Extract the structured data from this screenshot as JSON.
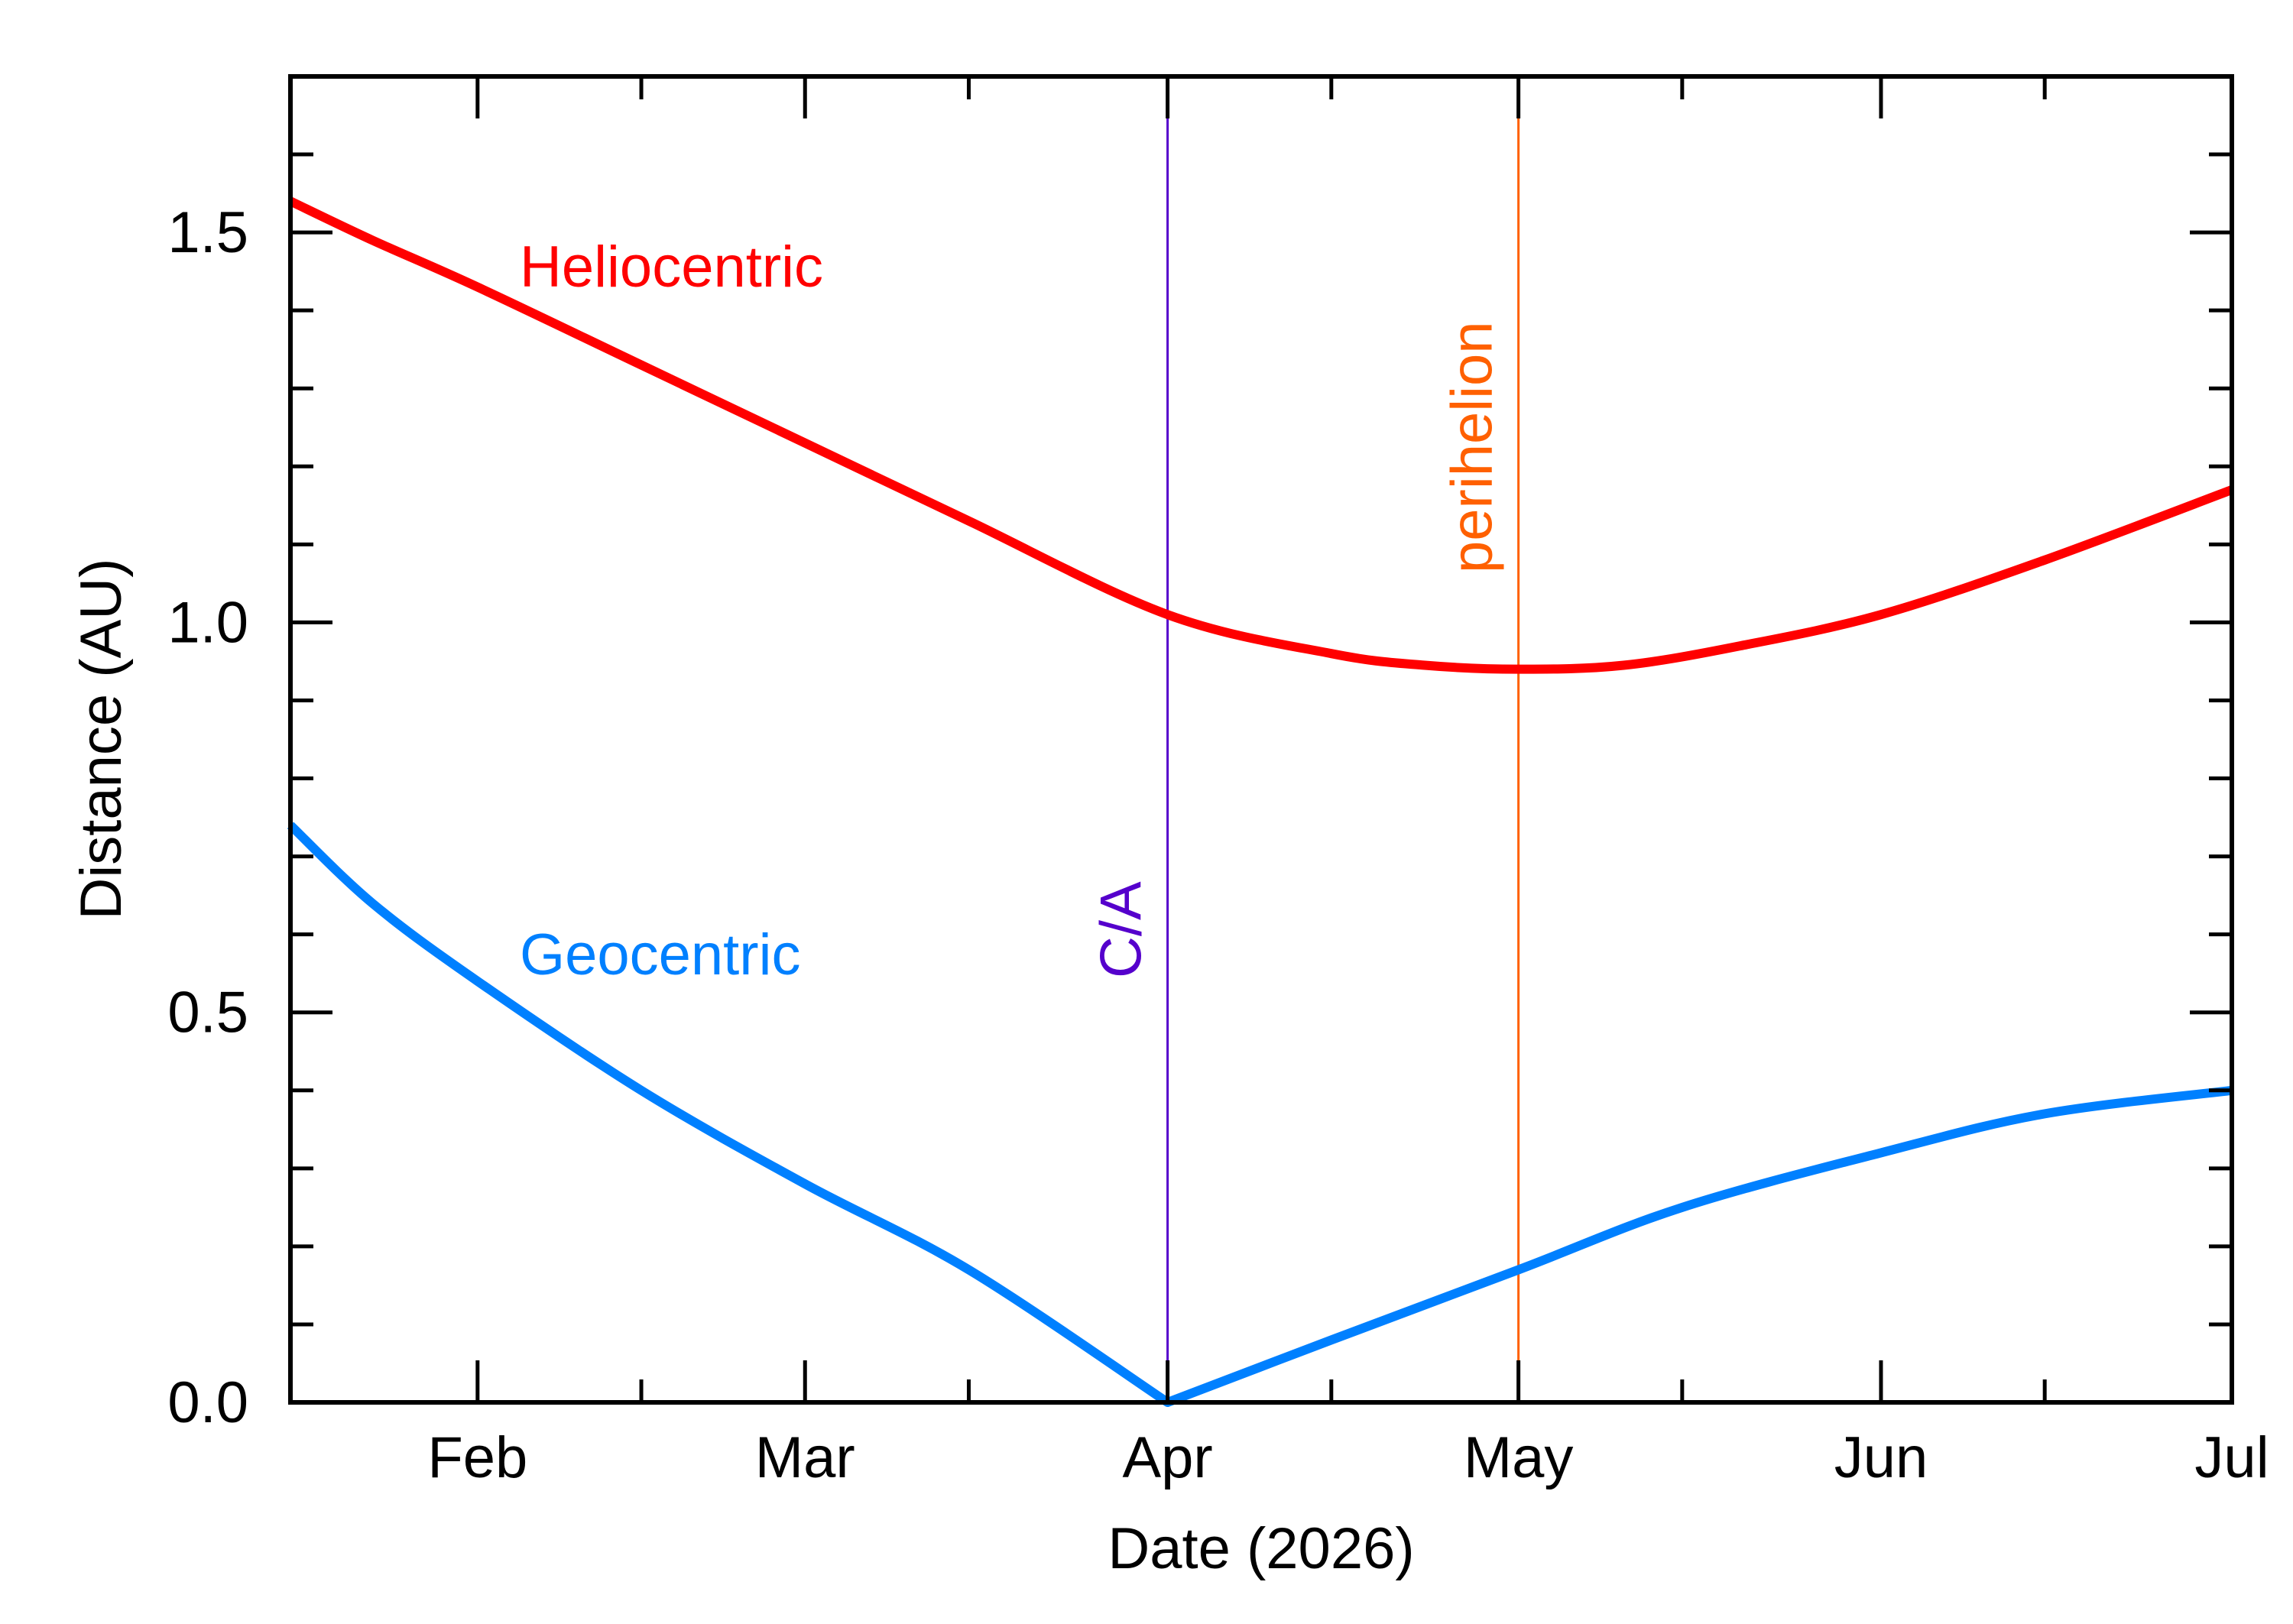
{
  "chart_data": {
    "type": "line",
    "xlabel": "Date (2026)",
    "ylabel": "Distance (AU)",
    "xlim": [
      "2026-01-16",
      "2026-07-01"
    ],
    "ylim": [
      0.0,
      1.7
    ],
    "x_ticks": [
      {
        "date": "2026-02-01",
        "label": "Feb"
      },
      {
        "date": "2026-03-01",
        "label": "Mar"
      },
      {
        "date": "2026-04-01",
        "label": "Apr"
      },
      {
        "date": "2026-05-01",
        "label": "May"
      },
      {
        "date": "2026-06-01",
        "label": "Jun"
      },
      {
        "date": "2026-07-01",
        "label": "Jul"
      }
    ],
    "x_minor_ticks": [
      "2026-02-15",
      "2026-03-15",
      "2026-04-15",
      "2026-05-15",
      "2026-06-15"
    ],
    "y_ticks": [
      {
        "value": 0.0,
        "label": "0.0"
      },
      {
        "value": 0.5,
        "label": "0.5"
      },
      {
        "value": 1.0,
        "label": "1.0"
      },
      {
        "value": 1.5,
        "label": "1.5"
      }
    ],
    "y_minor_step": 0.1,
    "grid": false,
    "series": [
      {
        "name": "Heliocentric",
        "color": "#ff0000",
        "x": [
          "2026-01-16",
          "2026-01-23",
          "2026-02-01",
          "2026-02-15",
          "2026-03-01",
          "2026-03-15",
          "2026-04-01",
          "2026-04-15",
          "2026-04-23",
          "2026-05-01",
          "2026-05-10",
          "2026-05-20",
          "2026-06-01",
          "2026-06-15",
          "2026-07-01"
        ],
        "values": [
          1.54,
          1.49,
          1.43,
          1.33,
          1.23,
          1.13,
          1.01,
          0.96,
          0.945,
          0.94,
          0.945,
          0.97,
          1.01,
          1.08,
          1.17
        ]
      },
      {
        "name": "Geocentric",
        "color": "#0080ff",
        "x": [
          "2026-01-16",
          "2026-01-23",
          "2026-02-01",
          "2026-02-15",
          "2026-03-01",
          "2026-03-15",
          "2026-04-01",
          "2026-04-15",
          "2026-05-01",
          "2026-05-15",
          "2026-06-01",
          "2026-06-15",
          "2026-07-01"
        ],
        "values": [
          0.74,
          0.64,
          0.54,
          0.4,
          0.28,
          0.17,
          0.0,
          0.08,
          0.17,
          0.25,
          0.32,
          0.37,
          0.4
        ]
      }
    ],
    "markers": [
      {
        "label": "C/A",
        "date": "2026-04-01",
        "color": "#5500cc"
      },
      {
        "label": "perihelion",
        "date": "2026-05-01",
        "color": "#ff6000"
      }
    ]
  }
}
